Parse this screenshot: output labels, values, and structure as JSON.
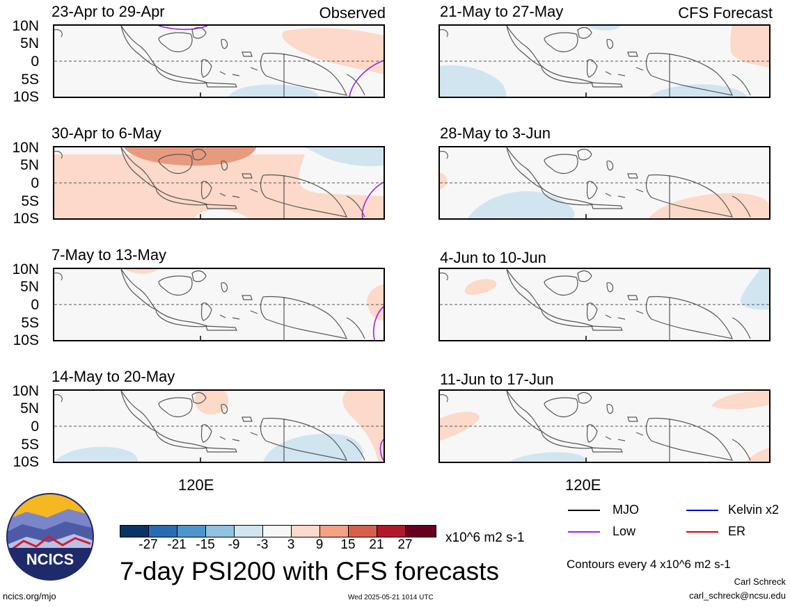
{
  "left_header": "Observed",
  "right_header": "CFS Forecast",
  "lat_labels": [
    "10N",
    "5N",
    "0",
    "5S",
    "10S"
  ],
  "x_label": "120E",
  "panels": {
    "left": [
      {
        "title": "23-Apr to 29-Apr"
      },
      {
        "title": "30-Apr to 6-May"
      },
      {
        "title": "7-May to 13-May"
      },
      {
        "title": "14-May to 20-May"
      }
    ],
    "right": [
      {
        "title": "21-May to 27-May"
      },
      {
        "title": "28-May to 3-Jun"
      },
      {
        "title": "4-Jun to 10-Jun"
      },
      {
        "title": "11-Jun to 17-Jun"
      }
    ]
  },
  "colorbar": {
    "labels": [
      "-27",
      "-21",
      "-15",
      "-9",
      "-3",
      "3",
      "9",
      "15",
      "21",
      "27"
    ],
    "colors": [
      "#083466",
      "#2a6cb4",
      "#4d96cb",
      "#91c2e0",
      "#d1e5f1",
      "#f7f7f7",
      "#fcd9c8",
      "#f3a283",
      "#d6604c",
      "#b2182b",
      "#67001f"
    ],
    "units": "x10^6 m2 s-1"
  },
  "legend": [
    {
      "label": "MJO",
      "color": "#000000"
    },
    {
      "label": "Kelvin x2",
      "color": "#0000cc"
    },
    {
      "label": "Low",
      "color": "#a020f0"
    },
    {
      "label": "ER",
      "color": "#e00000"
    }
  ],
  "main_title": "7-day PSI200 with CFS forecasts",
  "contour_note": "Contours every 4 x10^6 m2 s-1",
  "author": "Carl Schreck",
  "email": "carl_schreck@ncsu.edu",
  "website": "ncics.org/mjo",
  "timestamp": "Wed 2025-05-21 1014 UTC",
  "logo_text": "NCICS"
}
